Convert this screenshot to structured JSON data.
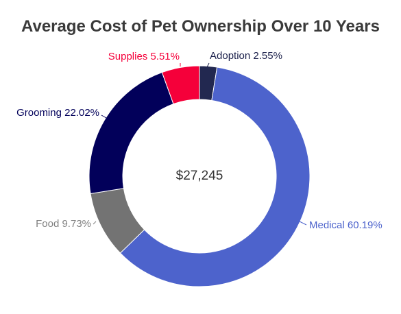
{
  "chart_data": {
    "type": "pie",
    "variant": "donut",
    "title": "Average Cost of Pet Ownership Over 10 Years",
    "center_text": "$27,245",
    "legend": "none",
    "slices": [
      {
        "label": "Adoption",
        "value": 2.55,
        "display": "Adoption 2.55%",
        "color": "#222850",
        "label_color": "#1a1f4a"
      },
      {
        "label": "Medical",
        "value": 60.19,
        "display": "Medical 60.19%",
        "color": "#4d63cc",
        "label_color": "#4d63cc"
      },
      {
        "label": "Food",
        "value": 9.73,
        "display": "Food 9.73%",
        "color": "#737373",
        "label_color": "#808080"
      },
      {
        "label": "Grooming",
        "value": 22.02,
        "display": "Grooming 22.02%",
        "color": "#02005a",
        "label_color": "#02005a"
      },
      {
        "label": "Supplies",
        "value": 5.51,
        "display": "Supplies 5.51%",
        "color": "#f5003a",
        "label_color": "#f5003a"
      }
    ]
  }
}
